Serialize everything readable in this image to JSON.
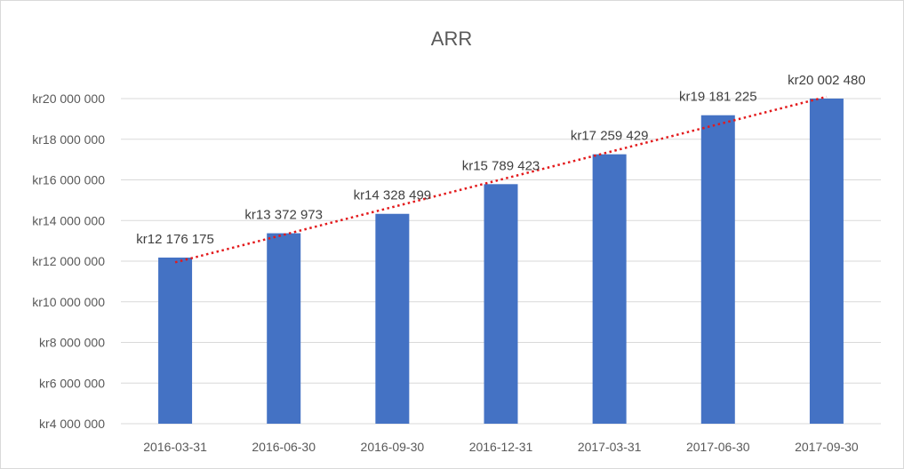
{
  "chart_data": {
    "type": "bar",
    "title": "ARR",
    "categories": [
      "2016-03-31",
      "2016-06-30",
      "2016-09-30",
      "2016-12-31",
      "2017-03-31",
      "2017-06-30",
      "2017-09-30"
    ],
    "values": [
      12176175,
      13372973,
      14328499,
      15789423,
      17259429,
      19181225,
      20002480
    ],
    "data_labels": [
      "kr12 176 175",
      "kr13 372 973",
      "kr14 328 499",
      "kr15 789 423",
      "kr17 259 429",
      "kr19 181 225",
      "kr20 002 480"
    ],
    "y_ticks": [
      4000000,
      6000000,
      8000000,
      10000000,
      12000000,
      14000000,
      16000000,
      18000000,
      20000000
    ],
    "y_tick_labels": [
      "kr4 000 000",
      "kr6 000 000",
      "kr8 000 000",
      "kr10 000 000",
      "kr12 000 000",
      "kr14 000 000",
      "kr16 000 000",
      "kr18 000 000",
      "kr20 000 000"
    ],
    "ylim": [
      4000000,
      20000000
    ],
    "xlabel": "",
    "ylabel": "",
    "grid": true,
    "legend": "none",
    "trendline": {
      "type": "linear",
      "style": "dotted"
    },
    "colors": {
      "bar": "#4472c4",
      "trendline": "#e31a1c",
      "grid": "#d9d9d9",
      "text": "#595959"
    }
  }
}
